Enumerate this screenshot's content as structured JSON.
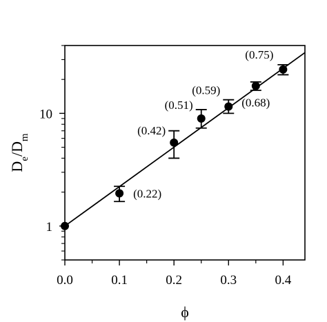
{
  "chart_data": {
    "type": "scatter",
    "title": "",
    "xlabel": "ϕ",
    "ylabel": {
      "base": "D",
      "num_sub": "e",
      "sep": "/D",
      "den_sub": "m"
    },
    "xlim": [
      0.0,
      0.44
    ],
    "ylim": [
      0.5,
      40
    ],
    "y_scale": "log",
    "grid": false,
    "x_ticks": [
      {
        "value": 0.0,
        "label": "0.0"
      },
      {
        "value": 0.1,
        "label": "0.1"
      },
      {
        "value": 0.2,
        "label": "0.2"
      },
      {
        "value": 0.3,
        "label": "0.3"
      },
      {
        "value": 0.4,
        "label": "0.4"
      }
    ],
    "y_ticks": [
      {
        "value": 1,
        "label": "1"
      },
      {
        "value": 10,
        "label": "10"
      }
    ],
    "points": [
      {
        "x": 0.0,
        "y": 1.0,
        "err_low": 1.0,
        "err_high": 1.0,
        "label": ""
      },
      {
        "x": 0.1,
        "y": 1.95,
        "err_low": 1.65,
        "err_high": 2.25,
        "label": "(0.22)"
      },
      {
        "x": 0.2,
        "y": 5.5,
        "err_low": 4.0,
        "err_high": 7.0,
        "label": "(0.42)"
      },
      {
        "x": 0.25,
        "y": 9.0,
        "err_low": 7.4,
        "err_high": 10.8,
        "label": "(0.51)"
      },
      {
        "x": 0.3,
        "y": 11.5,
        "err_low": 10.0,
        "err_high": 13.2,
        "label": "(0.59)"
      },
      {
        "x": 0.35,
        "y": 17.5,
        "err_low": 16.0,
        "err_high": 19.0,
        "label": "(0.68)"
      },
      {
        "x": 0.4,
        "y": 24.5,
        "err_low": 22.0,
        "err_high": 27.0,
        "label": "(0.75)"
      }
    ],
    "fit_line": {
      "x": [
        0.0,
        0.44
      ],
      "y": [
        1.0,
        34.6
      ]
    }
  }
}
